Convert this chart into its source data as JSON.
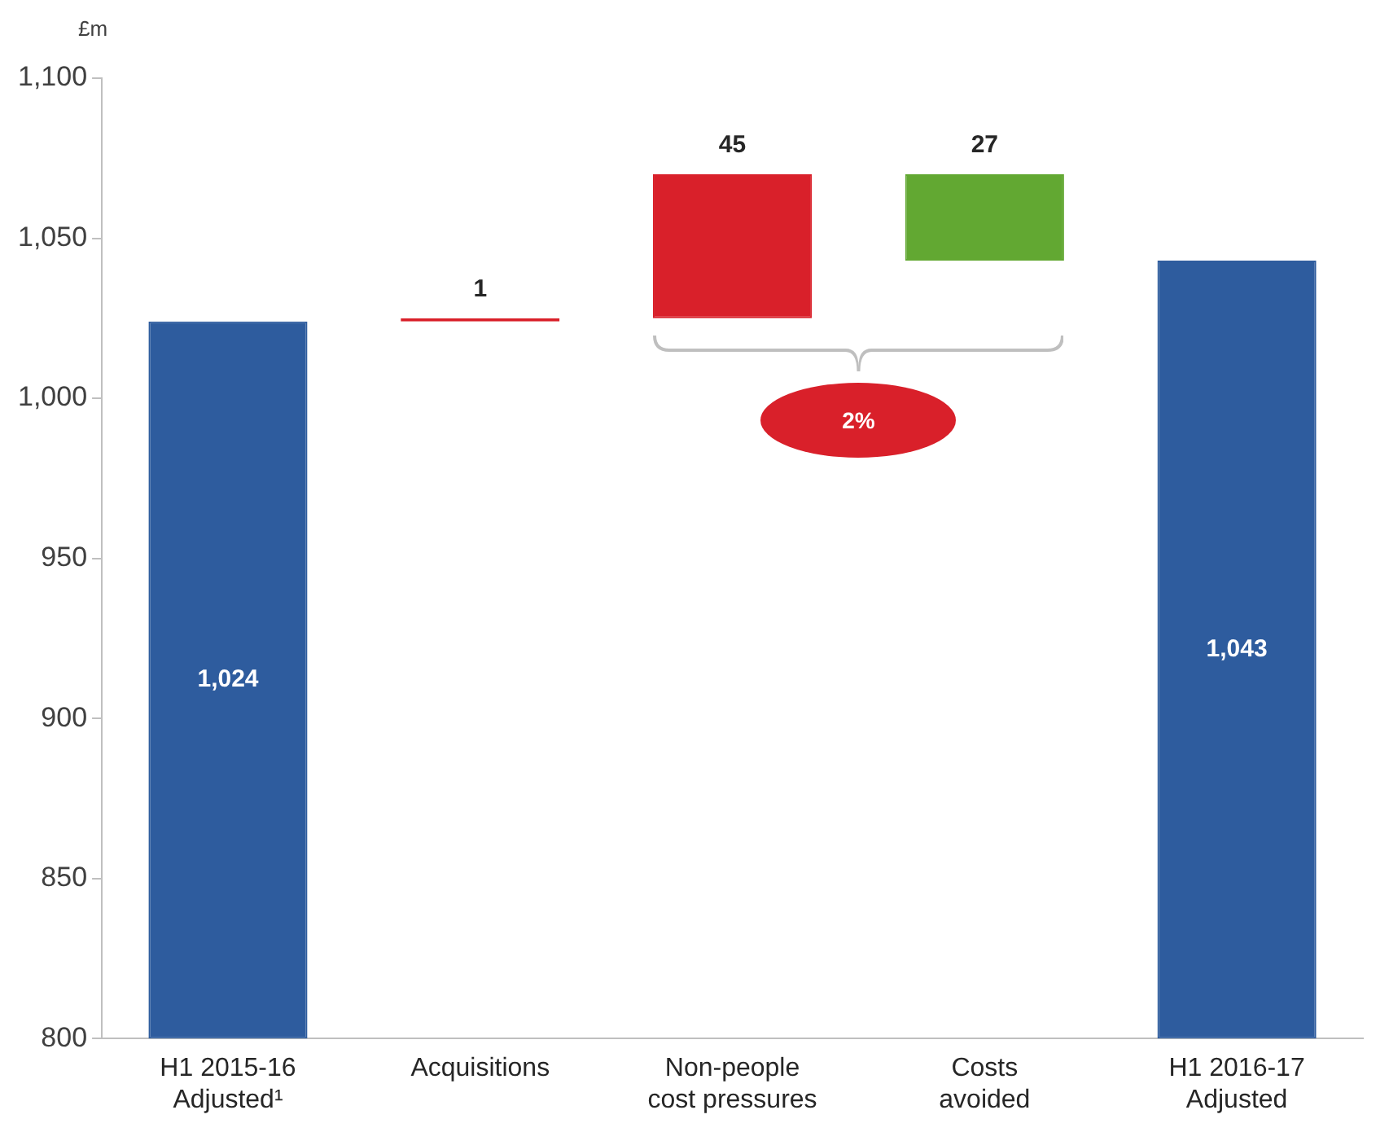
{
  "chart_data": {
    "type": "bar",
    "ylabel": "£m",
    "categories": [
      "H1 2015-16\nAdjusted¹",
      "Acquisitions",
      "Non-people\ncost pressures",
      "Costs\navoided",
      "H1 2016-17\nAdjusted"
    ],
    "values": [
      224,
      1,
      45,
      27,
      243
    ],
    "base": [
      800,
      1024,
      1025,
      1043,
      800
    ],
    "colors": [
      "#2e5c9e",
      "#d9202a",
      "#d9202a",
      "#62a832",
      "#2e5c9e"
    ],
    "value_labels": [
      "1,024",
      "1",
      "45",
      "27",
      "1,043"
    ],
    "ylim": [
      800,
      1100
    ],
    "yticks": [
      800,
      850,
      900,
      950,
      {
        "value": 1000,
        "label": "1,000"
      },
      {
        "value": 1050,
        "label": "1,050"
      },
      {
        "value": 1100,
        "label": "1,100"
      }
    ],
    "annotations": [
      "2%"
    ],
    "grid": false,
    "legend": false
  }
}
